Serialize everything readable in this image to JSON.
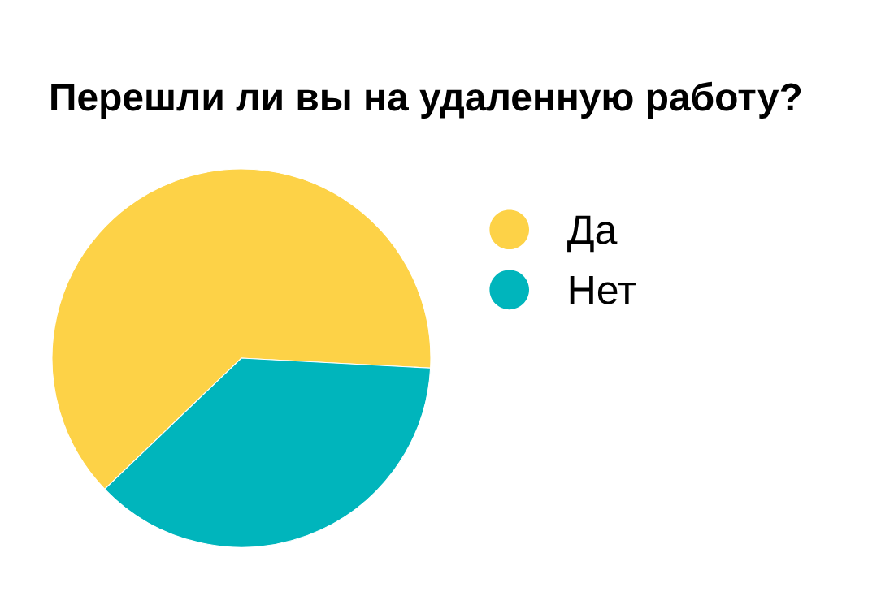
{
  "chart_data": {
    "type": "pie",
    "title": "Перешли ли вы на удаленную работу?",
    "categories": [
      "Да",
      "Нет"
    ],
    "values": [
      63,
      37
    ],
    "colors": [
      "#fdd247",
      "#00b5bc"
    ],
    "legend": "right"
  }
}
